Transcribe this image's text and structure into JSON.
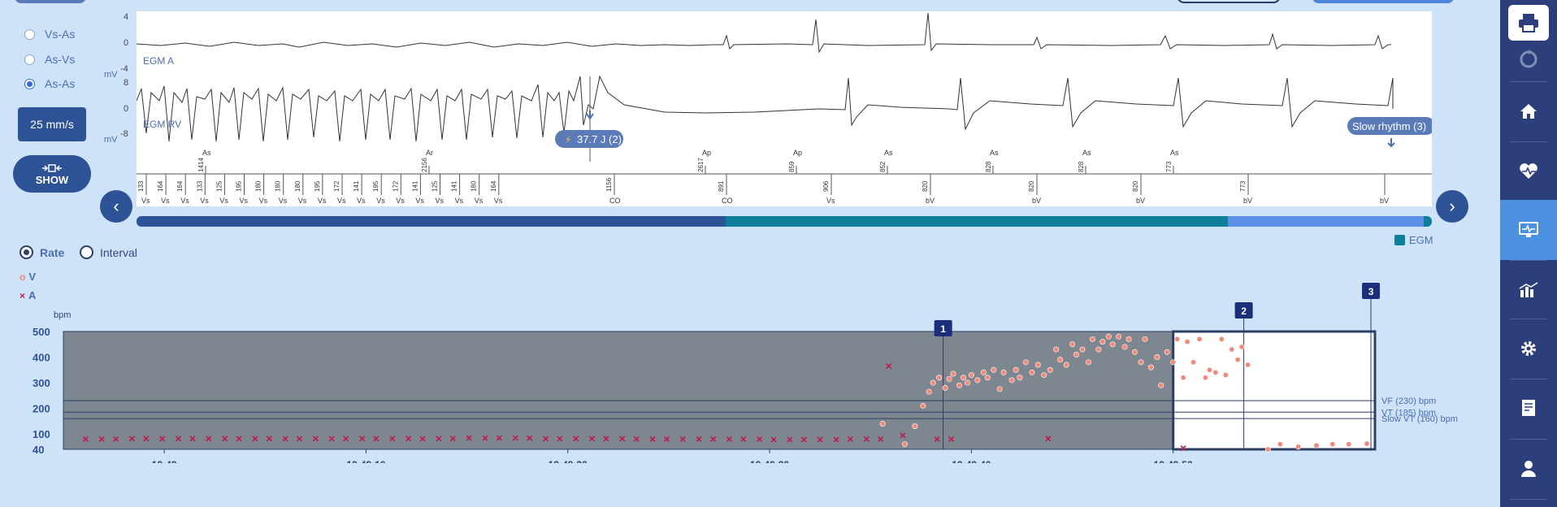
{
  "coupling": {
    "options": [
      {
        "label": "Vs-As",
        "checked": false
      },
      {
        "label": "As-Vs",
        "checked": false
      },
      {
        "label": "As-As",
        "checked": true
      }
    ]
  },
  "speed_label": "25 mm/s",
  "show_label": "SHOW",
  "egm": {
    "channel_a_label": "EGM A",
    "channel_rv_label": "EGM RV",
    "unit_label": "mV",
    "a_ticks": [
      "4",
      "0",
      "-4"
    ],
    "rv_ticks": [
      "8",
      "0",
      "-8"
    ],
    "shock_label": "37.7 J (2)",
    "slow_rhythm_label": "Slow rhythm (3)",
    "upper_markers": [
      {
        "label": "As",
        "value": "1414"
      },
      {
        "label": "Ar",
        "value": "2156"
      },
      {
        "label": "Ap",
        "value": "2617"
      },
      {
        "label": "Ap",
        "value": "859"
      },
      {
        "label": "As",
        "value": "852"
      },
      {
        "label": "As",
        "value": "828"
      },
      {
        "label": "As",
        "value": "828"
      },
      {
        "label": "As",
        "value": "773"
      }
    ],
    "lower_intervals": [
      "133",
      "164",
      "164",
      "133",
      "125",
      "195",
      "180",
      "180",
      "180",
      "195",
      "172",
      "141",
      "195",
      "172",
      "141",
      "125",
      "141",
      "180",
      "164",
      "1156",
      "891",
      "906",
      "820",
      "820",
      "820",
      "773"
    ],
    "lower_events": [
      "Vs",
      "Vs",
      "Vs",
      "Vs",
      "Vs",
      "Vs",
      "Vs",
      "Vs",
      "Vs",
      "Vs",
      "Vs",
      "Vs",
      "Vs",
      "Vs",
      "Vs",
      "Vs",
      "Vs",
      "Vs",
      "Vs",
      "CO",
      "CO",
      "Vs",
      "bV",
      "bV",
      "bV",
      "bV",
      "bV",
      "bV"
    ]
  },
  "legend_egm": "EGM",
  "mode": {
    "rate_label": "Rate",
    "interval_label": "Interval",
    "selected": "Rate"
  },
  "series_legend": {
    "v": "V",
    "a": "A"
  },
  "colors": {
    "v_marker": "#f08a7a",
    "a_marker": "#c0194e",
    "plot_bg": "#7e8690",
    "timebar_dark": "#2d5296",
    "timebar_teal": "#0e7f9a",
    "timebar_light": "#5b8fe6",
    "sidebar": "#2c3f7a",
    "sidebar_active": "#4c90e0"
  },
  "chart_data": {
    "type": "scatter",
    "ylabel": "bpm",
    "yticks": [
      "500",
      "400",
      "300",
      "200",
      "100",
      "40"
    ],
    "ylim": [
      40,
      500
    ],
    "x_ticks": [
      "19:49",
      "19:49:10",
      "19:49:20",
      "19:49:30",
      "19:49:40",
      "19:49:50"
    ],
    "xlim_seconds": [
      -5,
      60
    ],
    "zones": [
      {
        "name": "VF (230) bpm",
        "value": 230
      },
      {
        "name": "VT (185) bpm",
        "value": 185
      },
      {
        "name": "Slow VT (160) bpm",
        "value": 160
      }
    ],
    "event_markers": [
      {
        "label": "1",
        "t": 38.6
      },
      {
        "label": "2",
        "t": 53.5
      },
      {
        "label": "3",
        "t": 59.8
      }
    ],
    "highlight_window": [
      50,
      60
    ],
    "series": [
      {
        "name": "A",
        "x": [
          -3.9,
          -3.1,
          -2.4,
          -1.6,
          -0.9,
          -0.1,
          0.7,
          1.4,
          2.2,
          3,
          3.7,
          4.5,
          5.2,
          6,
          6.7,
          7.5,
          8.3,
          9,
          9.8,
          10.5,
          11.3,
          12.1,
          12.8,
          13.6,
          14.3,
          15.1,
          15.9,
          16.6,
          17.4,
          18.1,
          18.9,
          19.6,
          20.4,
          21.2,
          21.9,
          22.7,
          23.4,
          24.2,
          24.9,
          25.7,
          26.5,
          27.2,
          28,
          28.7,
          29.5,
          30.2,
          31,
          31.7,
          32.5,
          33.3,
          34,
          34.8,
          35.5,
          35.9,
          36.6,
          38.3,
          39,
          43.8,
          50.5
        ],
        "y": [
          80,
          80,
          80,
          82,
          82,
          82,
          82,
          82,
          82,
          82,
          82,
          82,
          82,
          82,
          82,
          82,
          82,
          82,
          82,
          82,
          82,
          82,
          82,
          82,
          82,
          84,
          84,
          84,
          84,
          84,
          82,
          82,
          82,
          82,
          82,
          82,
          80,
          80,
          80,
          80,
          80,
          80,
          80,
          80,
          80,
          78,
          78,
          78,
          78,
          78,
          80,
          80,
          80,
          365,
          94,
          80,
          80,
          82,
          44
        ]
      },
      {
        "name": "V",
        "x": [
          35.6,
          36.7,
          37.2,
          37.6,
          37.9,
          38.1,
          38.4,
          38.7,
          38.9,
          39.1,
          39.4,
          39.6,
          39.8,
          40,
          40.3,
          40.6,
          40.8,
          41.1,
          41.4,
          41.6,
          42,
          42.2,
          42.4,
          42.7,
          43,
          43.3,
          43.6,
          43.9,
          44.2,
          44.4,
          44.7,
          45,
          45.2,
          45.5,
          45.8,
          46,
          46.3,
          46.5,
          46.8,
          47,
          47.3,
          47.6,
          47.8,
          48.1,
          48.4,
          48.6,
          48.9,
          49.2,
          49.4,
          49.7,
          50,
          50.2,
          50.5,
          50.7,
          51,
          51.3,
          51.6,
          51.8,
          52.1,
          52.4,
          52.6,
          52.9,
          53.2,
          53.4,
          53.7,
          54.7,
          55.3,
          56.2,
          57.1,
          57.9,
          58.7,
          59.6
        ],
        "y": [
          140,
          60,
          130,
          210,
          265,
          300,
          320,
          280,
          315,
          335,
          290,
          320,
          300,
          330,
          310,
          340,
          320,
          350,
          275,
          340,
          310,
          350,
          320,
          380,
          340,
          370,
          330,
          350,
          430,
          390,
          370,
          450,
          410,
          430,
          380,
          470,
          430,
          460,
          480,
          450,
          480,
          440,
          470,
          420,
          380,
          470,
          360,
          400,
          290,
          420,
          380,
          470,
          320,
          460,
          380,
          470,
          320,
          350,
          340,
          470,
          330,
          430,
          390,
          440,
          370,
          40,
          60,
          50,
          55,
          60,
          60,
          62
        ]
      }
    ]
  }
}
